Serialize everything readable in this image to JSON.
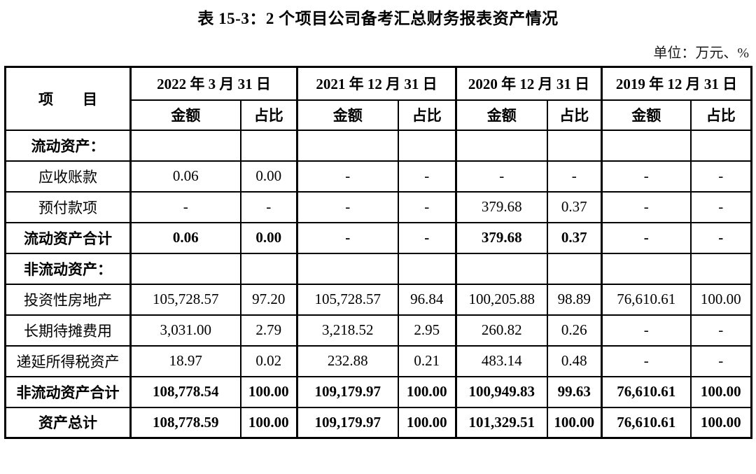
{
  "title": "表 15-3：2 个项目公司备考汇总财务报表资产情况",
  "unit_note": "单位：万元、%",
  "table": {
    "item_header": "项　　目",
    "col_groups": [
      {
        "date": "2022 年 3 月 31 日"
      },
      {
        "date": "2021 年 12 月 31 日"
      },
      {
        "date": "2020 年 12 月 31 日"
      },
      {
        "date": "2019 年 12 月 31 日"
      }
    ],
    "sub_headers": [
      "金额",
      "占比"
    ],
    "rows": [
      {
        "label": "流动资产：",
        "bold": true,
        "values": [
          "",
          "",
          "",
          "",
          "",
          "",
          "",
          ""
        ]
      },
      {
        "label": "应收账款",
        "bold": false,
        "values": [
          "0.06",
          "0.00",
          "-",
          "-",
          "-",
          "-",
          "-",
          "-"
        ]
      },
      {
        "label": "预付款项",
        "bold": false,
        "values": [
          "-",
          "-",
          "-",
          "-",
          "379.68",
          "0.37",
          "-",
          "-"
        ]
      },
      {
        "label": "流动资产合计",
        "bold": true,
        "values": [
          "0.06",
          "0.00",
          "-",
          "-",
          "379.68",
          "0.37",
          "-",
          "-"
        ]
      },
      {
        "label": "非流动资产：",
        "bold": true,
        "values": [
          "",
          "",
          "",
          "",
          "",
          "",
          "",
          ""
        ]
      },
      {
        "label": "投资性房地产",
        "bold": false,
        "values": [
          "105,728.57",
          "97.20",
          "105,728.57",
          "96.84",
          "100,205.88",
          "98.89",
          "76,610.61",
          "100.00"
        ]
      },
      {
        "label": "长期待摊费用",
        "bold": false,
        "values": [
          "3,031.00",
          "2.79",
          "3,218.52",
          "2.95",
          "260.82",
          "0.26",
          "-",
          "-"
        ]
      },
      {
        "label": "递延所得税资产",
        "bold": false,
        "values": [
          "18.97",
          "0.02",
          "232.88",
          "0.21",
          "483.14",
          "0.48",
          "-",
          "-"
        ]
      },
      {
        "label": "非流动资产合计",
        "bold": true,
        "values": [
          "108,778.54",
          "100.00",
          "109,179.97",
          "100.00",
          "100,949.83",
          "99.63",
          "76,610.61",
          "100.00"
        ]
      },
      {
        "label": "资产总计",
        "bold": true,
        "values": [
          "108,778.59",
          "100.00",
          "109,179.97",
          "100.00",
          "101,329.51",
          "100.00",
          "76,610.61",
          "100.00"
        ]
      }
    ]
  }
}
